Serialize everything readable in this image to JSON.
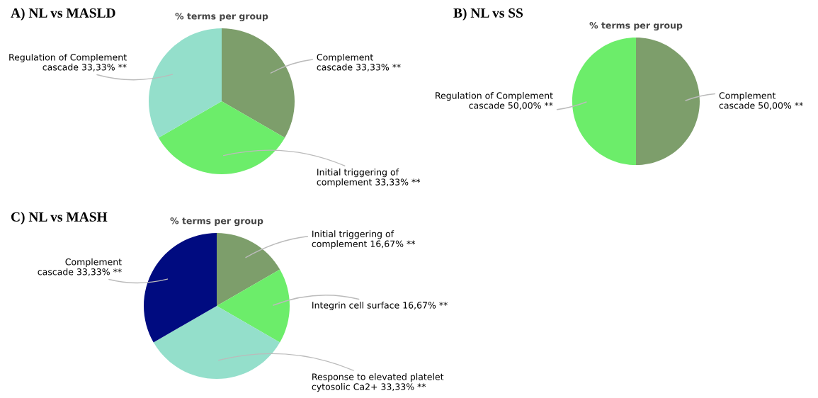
{
  "chart_data": [
    {
      "type": "pie",
      "title": "A) NL vs MASLD",
      "subtitle": "% terms per group",
      "categories": [
        "Complement\ncascade",
        "Initial triggering of\ncomplement",
        "Regulation of Complement\ncascade"
      ],
      "values": [
        33.33,
        33.33,
        33.33
      ],
      "value_labels": [
        "33,33% **",
        "33,33% **",
        "33,33% **"
      ],
      "colors": [
        "#7d9e6b",
        "#6ced6a",
        "#94dfcb"
      ]
    },
    {
      "type": "pie",
      "title": "B) NL vs SS",
      "subtitle": "% terms per group",
      "categories": [
        "Complement\ncascade",
        "Regulation of Complement\ncascade"
      ],
      "values": [
        50,
        50
      ],
      "value_labels": [
        "50,00% **",
        "50,00% **"
      ],
      "colors": [
        "#7d9e6b",
        "#6ced6a"
      ]
    },
    {
      "type": "pie",
      "title": "C) NL vs MASH",
      "subtitle": "% terms per group",
      "categories": [
        "Initial triggering of\ncomplement",
        "Integrin cell surface",
        "Response to elevated platelet\ncytosolic Ca2+",
        "Complement\ncascade"
      ],
      "values": [
        16.67,
        16.67,
        33.33,
        33.33
      ],
      "value_labels": [
        "16,67% **",
        "16,67% **",
        "33,33% **",
        "33,33% **"
      ],
      "colors": [
        "#7d9e6b",
        "#6ced6a",
        "#94dfcb",
        "#000b80"
      ]
    }
  ]
}
